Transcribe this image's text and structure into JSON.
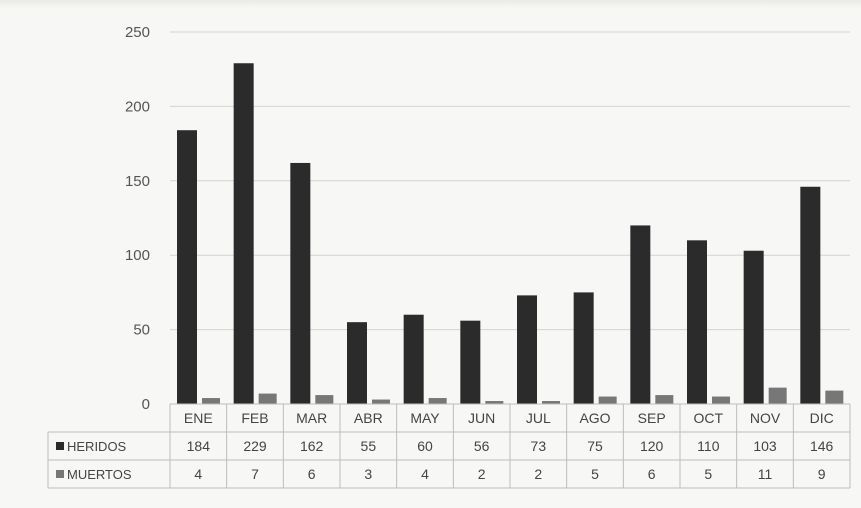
{
  "chart_data": {
    "type": "bar",
    "title": "",
    "xlabel": "",
    "ylabel": "",
    "ylim": [
      0,
      250
    ],
    "yticks": [
      0,
      50,
      100,
      150,
      200,
      250
    ],
    "grid": true,
    "legend": "table-left",
    "categories": [
      "ENE",
      "FEB",
      "MAR",
      "ABR",
      "MAY",
      "JUN",
      "JUL",
      "AGO",
      "SEP",
      "OCT",
      "NOV",
      "DIC"
    ],
    "series": [
      {
        "name": "HERIDOS",
        "values": [
          184,
          229,
          162,
          55,
          60,
          56,
          73,
          75,
          120,
          110,
          103,
          146
        ],
        "color": "#2b2b2b"
      },
      {
        "name": "MUERTOS",
        "values": [
          4,
          7,
          6,
          3,
          4,
          2,
          2,
          5,
          6,
          5,
          11,
          9
        ],
        "color": "#777777"
      }
    ]
  }
}
